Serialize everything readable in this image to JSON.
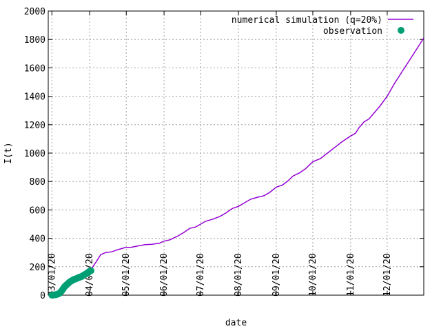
{
  "chart_data": {
    "type": "line",
    "xlabel": "date",
    "ylabel": "I(t)",
    "xlim": [
      "2020-02-27",
      "2020-12-31"
    ],
    "ylim": [
      0,
      2000
    ],
    "y_ticks": [
      0,
      200,
      400,
      600,
      800,
      1000,
      1200,
      1400,
      1600,
      1800,
      2000
    ],
    "x_ticks": [
      {
        "date": "2020-03-01",
        "label": "03/01/20"
      },
      {
        "date": "2020-04-01",
        "label": "04/01/20"
      },
      {
        "date": "2020-05-01",
        "label": "05/01/20"
      },
      {
        "date": "2020-06-01",
        "label": "06/01/20"
      },
      {
        "date": "2020-07-01",
        "label": "07/01/20"
      },
      {
        "date": "2020-08-01",
        "label": "08/01/20"
      },
      {
        "date": "2020-09-01",
        "label": "09/01/20"
      },
      {
        "date": "2020-10-01",
        "label": "10/01/20"
      },
      {
        "date": "2020-11-01",
        "label": "11/01/20"
      },
      {
        "date": "2020-12-01",
        "label": "12/01/20"
      }
    ],
    "grid": true,
    "legend_position": "top-right",
    "series": [
      {
        "name": "numerical simulation (q=20%)",
        "kind": "line",
        "color": "#9400d3",
        "points": [
          [
            "2020-03-01",
            0
          ],
          [
            "2020-03-06",
            5
          ],
          [
            "2020-03-10",
            25
          ],
          [
            "2020-03-14",
            60
          ],
          [
            "2020-03-18",
            90
          ],
          [
            "2020-03-22",
            110
          ],
          [
            "2020-03-26",
            125
          ],
          [
            "2020-03-30",
            150
          ],
          [
            "2020-04-02",
            180
          ],
          [
            "2020-04-06",
            230
          ],
          [
            "2020-04-10",
            285
          ],
          [
            "2020-04-14",
            300
          ],
          [
            "2020-04-19",
            305
          ],
          [
            "2020-04-24",
            320
          ],
          [
            "2020-04-30",
            335
          ],
          [
            "2020-05-05",
            337
          ],
          [
            "2020-05-10",
            345
          ],
          [
            "2020-05-16",
            355
          ],
          [
            "2020-05-22",
            358
          ],
          [
            "2020-05-28",
            365
          ],
          [
            "2020-06-01",
            380
          ],
          [
            "2020-06-06",
            390
          ],
          [
            "2020-06-12",
            415
          ],
          [
            "2020-06-17",
            440
          ],
          [
            "2020-06-22",
            470
          ],
          [
            "2020-06-27",
            480
          ],
          [
            "2020-07-01",
            500
          ],
          [
            "2020-07-05",
            520
          ],
          [
            "2020-07-11",
            535
          ],
          [
            "2020-07-17",
            555
          ],
          [
            "2020-07-22",
            580
          ],
          [
            "2020-07-27",
            610
          ],
          [
            "2020-08-01",
            625
          ],
          [
            "2020-08-06",
            650
          ],
          [
            "2020-08-11",
            675
          ],
          [
            "2020-08-17",
            690
          ],
          [
            "2020-08-22",
            700
          ],
          [
            "2020-08-27",
            725
          ],
          [
            "2020-09-01",
            760
          ],
          [
            "2020-09-06",
            775
          ],
          [
            "2020-09-10",
            800
          ],
          [
            "2020-09-15",
            840
          ],
          [
            "2020-09-20",
            860
          ],
          [
            "2020-09-25",
            890
          ],
          [
            "2020-10-01",
            940
          ],
          [
            "2020-10-07",
            960
          ],
          [
            "2020-10-13",
            1000
          ],
          [
            "2020-10-19",
            1040
          ],
          [
            "2020-10-25",
            1080
          ],
          [
            "2020-11-01",
            1120
          ],
          [
            "2020-11-05",
            1140
          ],
          [
            "2020-11-08",
            1180
          ],
          [
            "2020-11-12",
            1220
          ],
          [
            "2020-11-16",
            1240
          ],
          [
            "2020-11-20",
            1280
          ],
          [
            "2020-11-25",
            1330
          ],
          [
            "2020-12-01",
            1400
          ],
          [
            "2020-12-07",
            1490
          ],
          [
            "2020-12-13",
            1570
          ],
          [
            "2020-12-19",
            1650
          ],
          [
            "2020-12-25",
            1730
          ],
          [
            "2020-12-31",
            1810
          ]
        ]
      },
      {
        "name": "observation",
        "kind": "scatter",
        "color": "#009e73",
        "points": [
          [
            "2020-03-01",
            0
          ],
          [
            "2020-03-02",
            0
          ],
          [
            "2020-03-03",
            2
          ],
          [
            "2020-03-04",
            3
          ],
          [
            "2020-03-05",
            5
          ],
          [
            "2020-03-06",
            8
          ],
          [
            "2020-03-07",
            12
          ],
          [
            "2020-03-08",
            20
          ],
          [
            "2020-03-09",
            30
          ],
          [
            "2020-03-10",
            42
          ],
          [
            "2020-03-11",
            55
          ],
          [
            "2020-03-12",
            65
          ],
          [
            "2020-03-13",
            72
          ],
          [
            "2020-03-14",
            80
          ],
          [
            "2020-03-15",
            88
          ],
          [
            "2020-03-16",
            95
          ],
          [
            "2020-03-17",
            100
          ],
          [
            "2020-03-18",
            105
          ],
          [
            "2020-03-19",
            110
          ],
          [
            "2020-03-20",
            113
          ],
          [
            "2020-03-21",
            116
          ],
          [
            "2020-03-22",
            120
          ],
          [
            "2020-03-23",
            124
          ],
          [
            "2020-03-24",
            127
          ],
          [
            "2020-03-25",
            130
          ],
          [
            "2020-03-26",
            135
          ],
          [
            "2020-03-27",
            140
          ],
          [
            "2020-03-28",
            145
          ],
          [
            "2020-03-29",
            150
          ],
          [
            "2020-03-30",
            156
          ],
          [
            "2020-03-31",
            162
          ],
          [
            "2020-04-01",
            168
          ],
          [
            "2020-04-02",
            172
          ]
        ]
      }
    ]
  }
}
